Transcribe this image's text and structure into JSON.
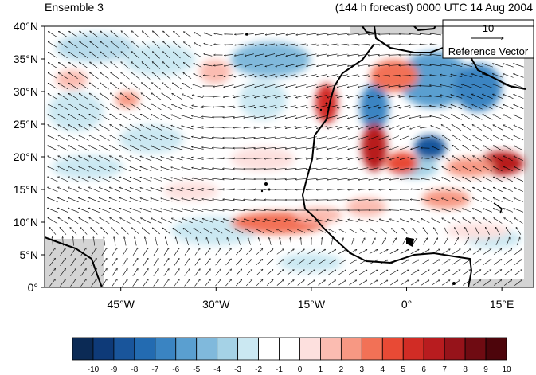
{
  "header": {
    "left_title": "Ensemble 3",
    "right_title": "(144 h forecast) 0000 UTC 14 Aug 2004"
  },
  "map": {
    "lon_range": [
      -57,
      20
    ],
    "lat_range": [
      0,
      40
    ],
    "lat_ticks": [
      "0°",
      "5°N",
      "10°N",
      "15°N",
      "20°N",
      "25°N",
      "30°N",
      "35°N",
      "40°N"
    ],
    "lon_ticks": [
      "45°W",
      "30°W",
      "15°W",
      "0°",
      "15°E"
    ],
    "lon_tick_values": [
      -45,
      -30,
      -15,
      0,
      15
    ],
    "lat_tick_values": [
      0,
      5,
      10,
      15,
      20,
      25,
      30,
      35,
      40
    ]
  },
  "reference_vector": {
    "magnitude": "10",
    "label": "Reference Vector"
  },
  "colorbar": {
    "labels": [
      "-10",
      "-9",
      "-8",
      "-7",
      "-6",
      "-5",
      "-4",
      "-3",
      "-2",
      "-1",
      "0",
      "1",
      "2",
      "3",
      "4",
      "5",
      "6",
      "7",
      "8",
      "9",
      "10"
    ],
    "colors": [
      "#0b2a55",
      "#0e3a78",
      "#19559b",
      "#236bb1",
      "#3a84c2",
      "#5a9fd0",
      "#80b9dc",
      "#a5d2e6",
      "#cbe8f2",
      "#ffffff",
      "#ffffff",
      "#fde0de",
      "#fbbcb1",
      "#f79883",
      "#f27156",
      "#e84a35",
      "#d12c25",
      "#b81c1f",
      "#96131a",
      "#6f0b12",
      "#4d050b"
    ]
  },
  "colors": {
    "land": "#d4d4d4",
    "coast": "#000000"
  }
}
